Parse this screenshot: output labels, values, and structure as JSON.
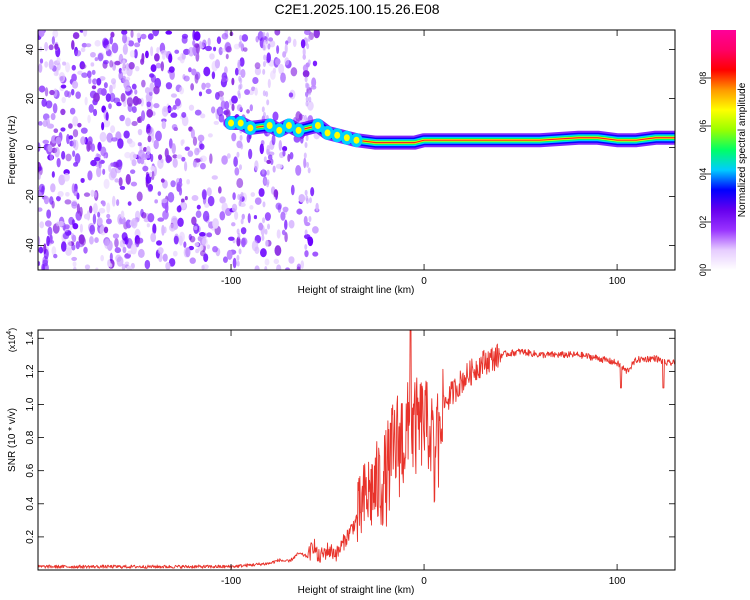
{
  "figure": {
    "title": "C2E1.2025.100.15.26.E08"
  },
  "chart_data": [
    {
      "type": "heatmap",
      "panel": "spectrogram",
      "xlabel": "Height of straight line (km)",
      "ylabel": "Frequency (Hz)",
      "xlim": [
        -200,
        130
      ],
      "ylim": [
        -50,
        48
      ],
      "xticks": [
        -100,
        0,
        100
      ],
      "xtick_labels": [
        "-100",
        "0",
        "100"
      ],
      "yticks": [
        -40,
        -20,
        0,
        20,
        40
      ],
      "ytick_labels": [
        "-40",
        "-20",
        "0",
        "20",
        "40"
      ],
      "colormap": "rainbow (white-purple-blue-cyan-green-yellow-red-magenta)",
      "colorbar": {
        "label": "Normalized spectral amplitude",
        "range": [
          0,
          1
        ],
        "ticks": [
          0.0,
          0.2,
          0.4,
          0.6,
          0.8
        ],
        "tick_labels": [
          "0.0",
          "0.2",
          "0.4",
          "0.6",
          "0.8"
        ],
        "colors": [
          "#ffffff",
          "#e6ccff",
          "#9933ff",
          "#6600ee",
          "#0000ff",
          "#00ccff",
          "#00ff66",
          "#99ff00",
          "#ffff00",
          "#ff9900",
          "#ff0000",
          "#ff0066",
          "#ff0099"
        ]
      },
      "ridge": {
        "x": [
          -100,
          -95,
          -90,
          -80,
          -75,
          -70,
          -65,
          -55,
          -50,
          -45,
          -40,
          -35,
          -25,
          -15,
          -5,
          0,
          5,
          20,
          40,
          60,
          80,
          90,
          100,
          110,
          120,
          130
        ],
        "freq": [
          10,
          10,
          8,
          9,
          7,
          9,
          7,
          9,
          6,
          5,
          4,
          3,
          2,
          2,
          2,
          3,
          3,
          3,
          3,
          3,
          4,
          4,
          3,
          3,
          4,
          4
        ]
      },
      "noise_extent_x": [
        -200,
        -55
      ]
    },
    {
      "type": "line",
      "panel": "snr",
      "xlabel": "Height of straight line (km)",
      "ylabel": "SNR (10 * v/v)",
      "y_multiplier_label": "(x10",
      "y_multiplier_exp": "4",
      "y_multiplier_close": ")",
      "xlim": [
        -200,
        130
      ],
      "ylim": [
        0,
        1.45
      ],
      "xticks": [
        -100,
        0,
        100
      ],
      "xtick_labels": [
        "-100",
        "0",
        "100"
      ],
      "yticks": [
        0.2,
        0.4,
        0.6,
        0.8,
        1.0,
        1.2,
        1.4
      ],
      "ytick_labels": [
        "0.2",
        "0.4",
        "0.6",
        "0.8",
        "1.0",
        "1.2",
        "1.4"
      ],
      "line_color": "#e8332b",
      "x": [
        -200,
        -150,
        -100,
        -90,
        -80,
        -75,
        -70,
        -65,
        -60,
        -57,
        -55,
        -50,
        -45,
        -40,
        -35,
        -30,
        -25,
        -20,
        -15,
        -10,
        -5,
        0,
        5,
        10,
        20,
        30,
        40,
        50,
        60,
        70,
        80,
        90,
        100,
        105,
        110,
        120,
        125,
        130
      ],
      "y": [
        0.02,
        0.02,
        0.02,
        0.03,
        0.04,
        0.06,
        0.05,
        0.1,
        0.08,
        0.16,
        0.07,
        0.12,
        0.1,
        0.2,
        0.3,
        0.45,
        0.5,
        0.55,
        0.75,
        0.8,
        0.85,
        0.9,
        0.8,
        1.0,
        1.15,
        1.25,
        1.3,
        1.32,
        1.3,
        1.3,
        1.3,
        1.28,
        1.25,
        1.2,
        1.27,
        1.28,
        1.25,
        1.25
      ]
    }
  ]
}
